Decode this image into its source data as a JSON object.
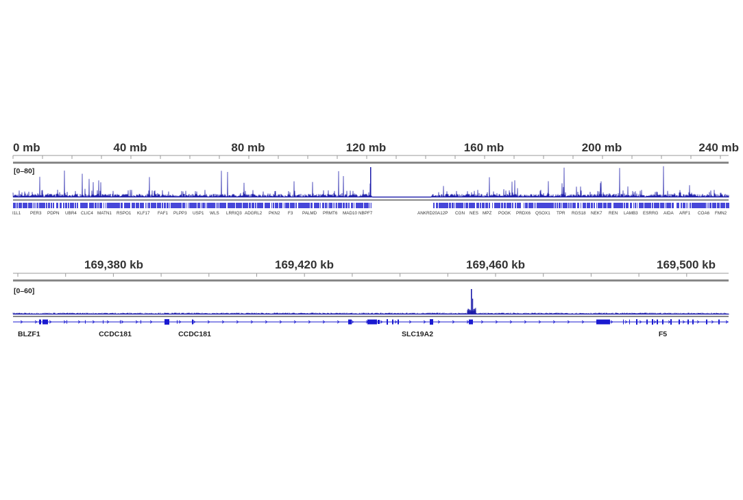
{
  "genome_view": {
    "ruler_ticks": [
      "0 mb",
      "40 mb",
      "80 mb",
      "120 mb",
      "160 mb",
      "200 mb",
      "240 mb"
    ],
    "data_range": "[0–80]",
    "gene_labels": [
      "I1L1",
      "PER3",
      "PDPN",
      "UBR4",
      "CLIC4",
      "MATN1",
      "RSPO1",
      "KLF17",
      "FAF1",
      "PLPP3",
      "USP1",
      "WLS",
      "LRRIQ3",
      "ADGRL2",
      "PKN2",
      "F3",
      "PALMD",
      "PRMT6",
      "MAD10",
      "NBPF7",
      "ANKRD20A12P",
      "CGN",
      "NES",
      "MPZ",
      "POGK",
      "PRDX6",
      "QSOX1",
      "TPR",
      "RGS18",
      "NEK7",
      "REN",
      "LAMB3",
      "ESRRG",
      "AIDA",
      "ARF1",
      "COA6",
      "FMN2"
    ]
  },
  "locus_view": {
    "ruler_ticks": [
      "169,380 kb",
      "169,420 kb",
      "169,460 kb",
      "169,500 kb"
    ],
    "data_range": "[0–60]",
    "gene_labels": [
      "BLZF1",
      "CCDC181",
      "CCDC181",
      "SLC19A2",
      "F5"
    ]
  },
  "colors": {
    "signal": "#1a1aa8",
    "gene": "#1a1ad0",
    "ruler": "#888888"
  }
}
